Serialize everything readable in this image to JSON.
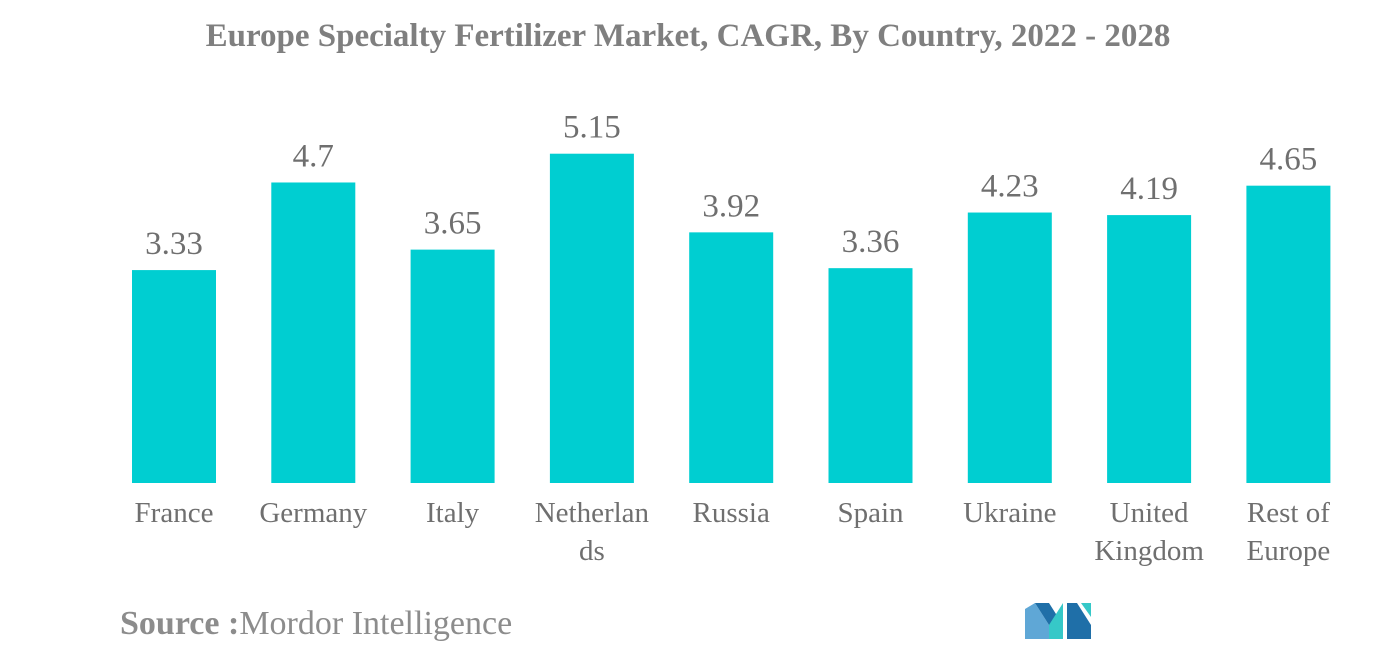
{
  "chart_data": {
    "type": "bar",
    "title": "Europe Specialty Fertilizer Market, CAGR, By Country, 2022 - 2028",
    "categories": [
      "France",
      "Germany",
      "Italy",
      "Netherlands",
      "Russia",
      "Spain",
      "Ukraine",
      "United Kingdom",
      "Rest of Europe"
    ],
    "category_lines": [
      [
        "France"
      ],
      [
        "Germany"
      ],
      [
        "Italy"
      ],
      [
        "Netherlan",
        "ds"
      ],
      [
        "Russia"
      ],
      [
        "Spain"
      ],
      [
        "Ukraine"
      ],
      [
        "United",
        "Kingdom"
      ],
      [
        "Rest of",
        "Europe"
      ]
    ],
    "values": [
      3.33,
      4.7,
      3.65,
      5.15,
      3.92,
      3.36,
      4.23,
      4.19,
      4.65
    ],
    "value_labels": [
      "3.33",
      "4.7",
      "3.65",
      "5.15",
      "3.92",
      "3.36",
      "4.23",
      "4.19",
      "4.65"
    ],
    "ylim": [
      0,
      5.99
    ],
    "grid": false,
    "bar_color": "#00ced1"
  },
  "source": {
    "label": "Source :",
    "text": "Mordor Intelligence"
  },
  "logo": {
    "icon": "mordor-intelligence-logo",
    "colors": [
      "#5fa7d6",
      "#1f6fa8",
      "#36c8c8"
    ]
  }
}
